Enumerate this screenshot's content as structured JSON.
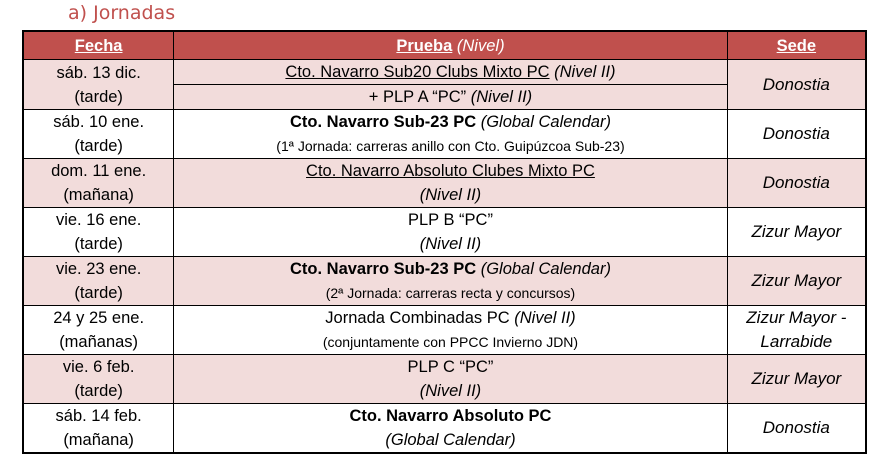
{
  "section_title": "a)  Jornadas",
  "header": {
    "fecha": "Fecha",
    "prueba": "Prueba",
    "nivel": " (Nivel)",
    "sede": "Sede"
  },
  "colors": {
    "header_bg": "#c0504d",
    "row_alt": "#f2dcdb"
  },
  "rows": [
    {
      "fecha": [
        "sáb. 13 dic.",
        "(tarde)"
      ],
      "p1": "Cto. Navarro Sub20 Clubs Mixto PC",
      "p1i": " (Nivel II)",
      "p2": "+ PLP A “PC”",
      "p2i": " (Nivel II)",
      "sede": "Donostia"
    },
    {
      "fecha": [
        "sáb. 10 ene.",
        "(tarde)"
      ],
      "p1": "Cto. Navarro Sub-23 PC",
      "p1i": " (Global Calendar)",
      "p2": "(1ª Jornada: carreras anillo con Cto. Guipúzcoa Sub-23)",
      "sede": "Donostia"
    },
    {
      "fecha": [
        "dom. 11 ene.",
        "(mañana)"
      ],
      "p1": "Cto. Navarro Absoluto Clubes Mixto PC",
      "p2": "(Nivel II)",
      "sede": "Donostia"
    },
    {
      "fecha": [
        "vie. 16 ene.",
        "(tarde)"
      ],
      "p1": "PLP B “PC”",
      "p2": "(Nivel II)",
      "sede": "Zizur Mayor"
    },
    {
      "fecha": [
        "vie. 23 ene.",
        "(tarde)"
      ],
      "p1": "Cto. Navarro Sub-23 PC",
      "p1i": " (Global Calendar)",
      "p2": "(2ª Jornada: carreras recta y concursos)",
      "sede": "Zizur Mayor"
    },
    {
      "fecha": [
        "24 y 25 ene.",
        "(mañanas)"
      ],
      "p1": "Jornada Combinadas PC",
      "p1i": " (Nivel II)",
      "p2": "(conjuntamente con PPCC Invierno JDN)",
      "sede": [
        "Zizur Mayor -",
        "Larrabide"
      ]
    },
    {
      "fecha": [
        "vie. 6 feb.",
        "(tarde)"
      ],
      "p1": "PLP C “PC”",
      "p2": "(Nivel II)",
      "sede": "Zizur Mayor"
    },
    {
      "fecha": [
        "sáb. 14 feb.",
        "(mañana)"
      ],
      "p1": "Cto. Navarro Absoluto PC",
      "p2": "(Global Calendar)",
      "sede": "Donostia"
    }
  ]
}
